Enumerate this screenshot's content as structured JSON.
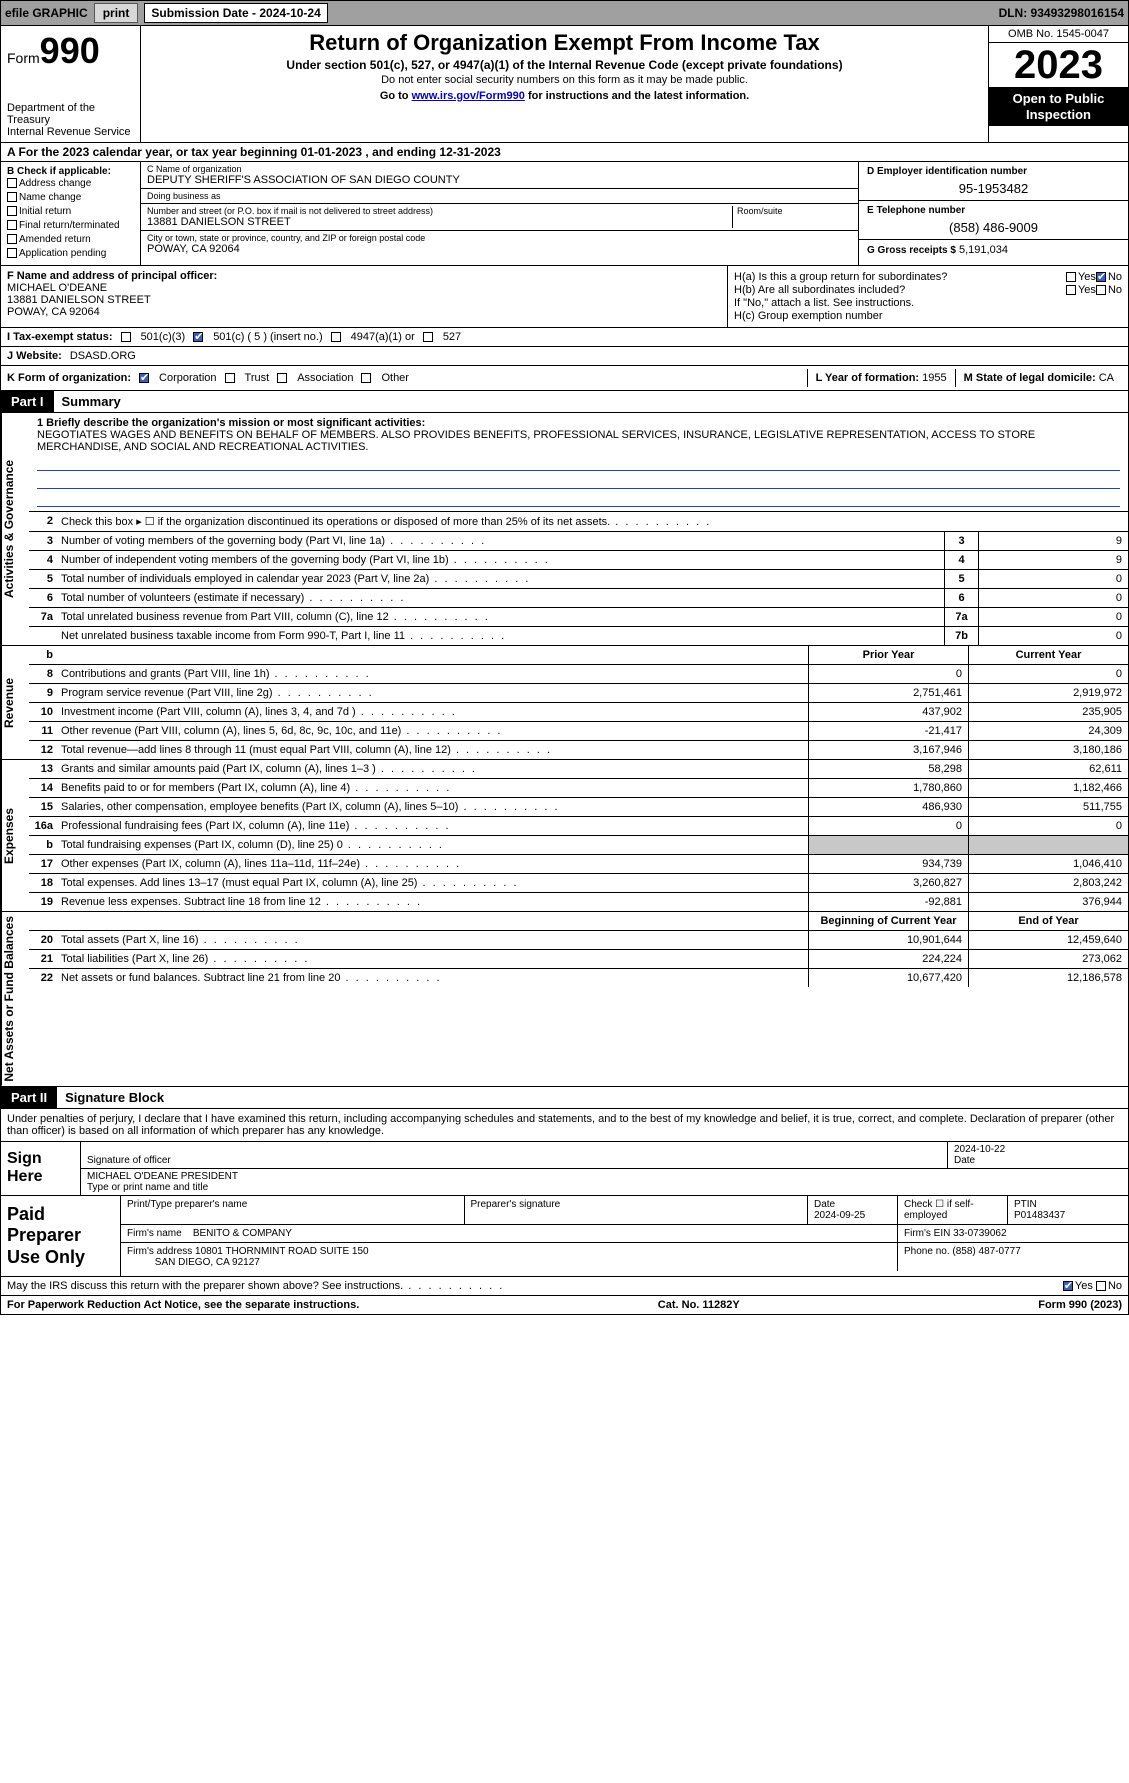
{
  "topbar": {
    "efile_label": "efile GRAPHIC",
    "print_btn": "print",
    "sub_label": "Submission Date - 2024-10-24",
    "dln": "DLN: 93493298016154"
  },
  "header": {
    "form_word": "Form",
    "form_num": "990",
    "dept": "Department of the Treasury\nInternal Revenue Service",
    "title": "Return of Organization Exempt From Income Tax",
    "sub1": "Under section 501(c), 527, or 4947(a)(1) of the Internal Revenue Code (except private foundations)",
    "sub2": "Do not enter social security numbers on this form as it may be made public.",
    "sub3_pre": "Go to ",
    "sub3_link": "www.irs.gov/Form990",
    "sub3_post": " for instructions and the latest information.",
    "omb": "OMB No. 1545-0047",
    "year": "2023",
    "openpub": "Open to Public Inspection"
  },
  "row_a": {
    "pre": "A For the 2023 calendar year, or tax year beginning ",
    "d1": "01-01-2023",
    "mid": " , and ending ",
    "d2": "12-31-2023"
  },
  "box_b": {
    "hdr": "B Check if applicable:",
    "opts": [
      "Address change",
      "Name change",
      "Initial return",
      "Final return/terminated",
      "Amended return",
      "Application pending"
    ]
  },
  "box_c": {
    "name_lbl": "C Name of organization",
    "name": "DEPUTY SHERIFF'S ASSOCIATION OF SAN DIEGO COUNTY",
    "dba_lbl": "Doing business as",
    "dba": "",
    "street_lbl": "Number and street (or P.O. box if mail is not delivered to street address)",
    "street": "13881 DANIELSON STREET",
    "room_lbl": "Room/suite",
    "room": "",
    "city_lbl": "City or town, state or province, country, and ZIP or foreign postal code",
    "city": "POWAY, CA  92064"
  },
  "box_d": {
    "ein_lbl": "D Employer identification number",
    "ein": "95-1953482",
    "tel_lbl": "E Telephone number",
    "tel": "(858) 486-9009",
    "gross_lbl": "G Gross receipts $",
    "gross": "5,191,034"
  },
  "box_f": {
    "lbl": "F Name and address of principal officer:",
    "name": "MICHAEL O'DEANE",
    "street": "13881 DANIELSON STREET",
    "city": "POWAY, CA  92064"
  },
  "box_h": {
    "a_lbl": "H(a)  Is this a group return for subordinates?",
    "b_lbl": "H(b)  Are all subordinates included?",
    "b_note": "If \"No,\" attach a list. See instructions.",
    "c_lbl": "H(c)  Group exemption number",
    "yes": "Yes",
    "no": "No"
  },
  "row_i": {
    "lbl": "I   Tax-exempt status:",
    "o1": "501(c)(3)",
    "o2": "501(c) ( 5 ) (insert no.)",
    "o3": "4947(a)(1) or",
    "o4": "527"
  },
  "row_j": {
    "lbl": "J   Website:",
    "val": "DSASD.ORG"
  },
  "row_k": {
    "lbl": "K Form of organization:",
    "o1": "Corporation",
    "o2": "Trust",
    "o3": "Association",
    "o4": "Other",
    "l_lbl": "L Year of formation: ",
    "l_val": "1955",
    "m_lbl": "M State of legal domicile: ",
    "m_val": "CA"
  },
  "part1": {
    "tag": "Part I",
    "title": "Summary"
  },
  "mission": {
    "lbl": "1   Briefly describe the organization's mission or most significant activities:",
    "text": "NEGOTIATES WAGES AND BENEFITS ON BEHALF OF MEMBERS. ALSO PROVIDES BENEFITS, PROFESSIONAL SERVICES, INSURANCE, LEGISLATIVE REPRESENTATION, ACCESS TO STORE MERCHANDISE, AND SOCIAL AND RECREATIONAL ACTIVITIES."
  },
  "gov_lines": [
    {
      "n": "2",
      "t": "Check this box ▸ ☐ if the organization discontinued its operations or disposed of more than 25% of its net assets.",
      "ref": "",
      "v": ""
    },
    {
      "n": "3",
      "t": "Number of voting members of the governing body (Part VI, line 1a)",
      "ref": "3",
      "v": "9"
    },
    {
      "n": "4",
      "t": "Number of independent voting members of the governing body (Part VI, line 1b)",
      "ref": "4",
      "v": "9"
    },
    {
      "n": "5",
      "t": "Total number of individuals employed in calendar year 2023 (Part V, line 2a)",
      "ref": "5",
      "v": "0"
    },
    {
      "n": "6",
      "t": "Total number of volunteers (estimate if necessary)",
      "ref": "6",
      "v": "0"
    },
    {
      "n": "7a",
      "t": "Total unrelated business revenue from Part VIII, column (C), line 12",
      "ref": "7a",
      "v": "0"
    },
    {
      "n": "",
      "t": "Net unrelated business taxable income from Form 990-T, Part I, line 11",
      "ref": "7b",
      "v": "0"
    }
  ],
  "gov_label": "Activities & Governance",
  "rev_label": "Revenue",
  "exp_label": "Expenses",
  "net_label": "Net Assets or Fund Balances",
  "col_hdr": {
    "b": "b",
    "py": "Prior Year",
    "cy": "Current Year"
  },
  "rev_lines": [
    {
      "n": "8",
      "t": "Contributions and grants (Part VIII, line 1h)",
      "py": "0",
      "cy": "0"
    },
    {
      "n": "9",
      "t": "Program service revenue (Part VIII, line 2g)",
      "py": "2,751,461",
      "cy": "2,919,972"
    },
    {
      "n": "10",
      "t": "Investment income (Part VIII, column (A), lines 3, 4, and 7d )",
      "py": "437,902",
      "cy": "235,905"
    },
    {
      "n": "11",
      "t": "Other revenue (Part VIII, column (A), lines 5, 6d, 8c, 9c, 10c, and 11e)",
      "py": "-21,417",
      "cy": "24,309"
    },
    {
      "n": "12",
      "t": "Total revenue—add lines 8 through 11 (must equal Part VIII, column (A), line 12)",
      "py": "3,167,946",
      "cy": "3,180,186"
    }
  ],
  "exp_lines": [
    {
      "n": "13",
      "t": "Grants and similar amounts paid (Part IX, column (A), lines 1–3 )",
      "py": "58,298",
      "cy": "62,611"
    },
    {
      "n": "14",
      "t": "Benefits paid to or for members (Part IX, column (A), line 4)",
      "py": "1,780,860",
      "cy": "1,182,466"
    },
    {
      "n": "15",
      "t": "Salaries, other compensation, employee benefits (Part IX, column (A), lines 5–10)",
      "py": "486,930",
      "cy": "511,755"
    },
    {
      "n": "16a",
      "t": "Professional fundraising fees (Part IX, column (A), line 11e)",
      "py": "0",
      "cy": "0"
    },
    {
      "n": "b",
      "t": "Total fundraising expenses (Part IX, column (D), line 25) 0",
      "py": "__grey__",
      "cy": "__grey__"
    },
    {
      "n": "17",
      "t": "Other expenses (Part IX, column (A), lines 11a–11d, 11f–24e)",
      "py": "934,739",
      "cy": "1,046,410"
    },
    {
      "n": "18",
      "t": "Total expenses. Add lines 13–17 (must equal Part IX, column (A), line 25)",
      "py": "3,260,827",
      "cy": "2,803,242"
    },
    {
      "n": "19",
      "t": "Revenue less expenses. Subtract line 18 from line 12",
      "py": "-92,881",
      "cy": "376,944"
    }
  ],
  "net_hdr": {
    "py": "Beginning of Current Year",
    "cy": "End of Year"
  },
  "net_lines": [
    {
      "n": "20",
      "t": "Total assets (Part X, line 16)",
      "py": "10,901,644",
      "cy": "12,459,640"
    },
    {
      "n": "21",
      "t": "Total liabilities (Part X, line 26)",
      "py": "224,224",
      "cy": "273,062"
    },
    {
      "n": "22",
      "t": "Net assets or fund balances. Subtract line 21 from line 20",
      "py": "10,677,420",
      "cy": "12,186,578"
    }
  ],
  "part2": {
    "tag": "Part II",
    "title": "Signature Block"
  },
  "sig_intro": "Under penalties of perjury, I declare that I have examined this return, including accompanying schedules and statements, and to the best of my knowledge and belief, it is true, correct, and complete. Declaration of preparer (other than officer) is based on all information of which preparer has any knowledge.",
  "sign": {
    "here": "Sign Here",
    "sig_lbl": "Signature of officer",
    "name": "MICHAEL O'DEANE PRESIDENT",
    "name_lbl": "Type or print name and title",
    "date_lbl": "Date",
    "date": "2024-10-22"
  },
  "paid": {
    "left": "Paid Preparer Use Only",
    "pname_lbl": "Print/Type preparer's name",
    "pname": "",
    "psig_lbl": "Preparer's signature",
    "pdate_lbl": "Date",
    "pdate": "2024-09-25",
    "self_lbl": "Check ☐ if self-employed",
    "ptin_lbl": "PTIN",
    "ptin": "P01483437",
    "firm_name_lbl": "Firm's name",
    "firm_name": "BENITO & COMPANY",
    "firm_ein_lbl": "Firm's EIN",
    "firm_ein": "33-0739062",
    "firm_addr_lbl": "Firm's address",
    "firm_addr1": "10801 THORNMINT ROAD SUITE 150",
    "firm_addr2": "SAN DIEGO, CA  92127",
    "phone_lbl": "Phone no.",
    "phone": "(858) 487-0777"
  },
  "irs_discuss": {
    "text": "May the IRS discuss this return with the preparer shown above? See instructions.",
    "yes": "Yes",
    "no": "No"
  },
  "footer": {
    "left": "For Paperwork Reduction Act Notice, see the separate instructions.",
    "mid": "Cat. No. 11282Y",
    "right": "Form 990 (2023)"
  }
}
